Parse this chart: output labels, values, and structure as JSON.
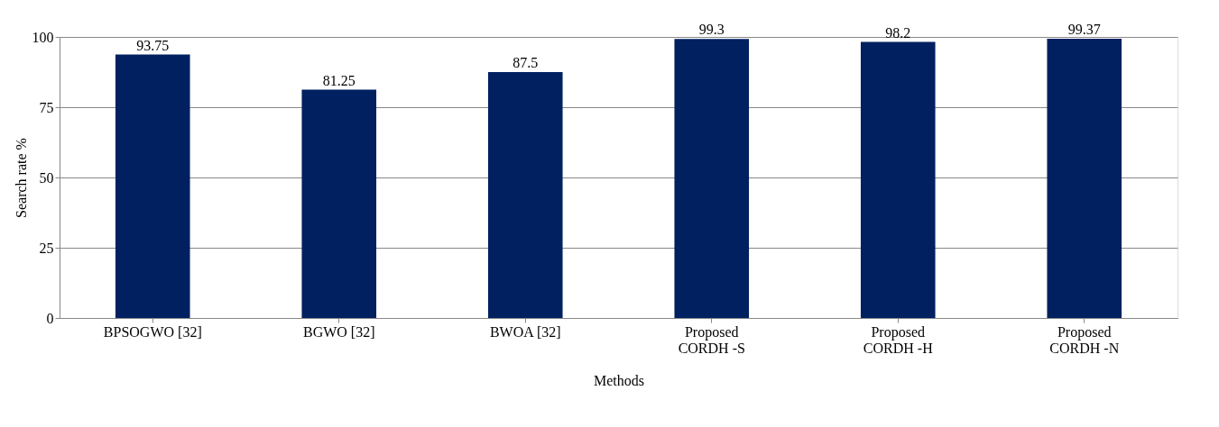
{
  "chart_data": {
    "type": "bar",
    "xlabel": "Methods",
    "ylabel": "Search rate %",
    "categories": [
      "BPSOGWO [32]",
      "BGWO [32]",
      "BWOA [32]",
      "Proposed\nCORDH -S",
      "Proposed\nCORDH -H",
      "Proposed\nCORDH  -N"
    ],
    "values": [
      93.75,
      81.25,
      87.5,
      99.3,
      98.2,
      99.37
    ],
    "color": "#002060",
    "ylim": [
      0,
      100
    ],
    "yticks": [
      0,
      25,
      50,
      75,
      100
    ],
    "grid": "y",
    "data_labels": true
  }
}
